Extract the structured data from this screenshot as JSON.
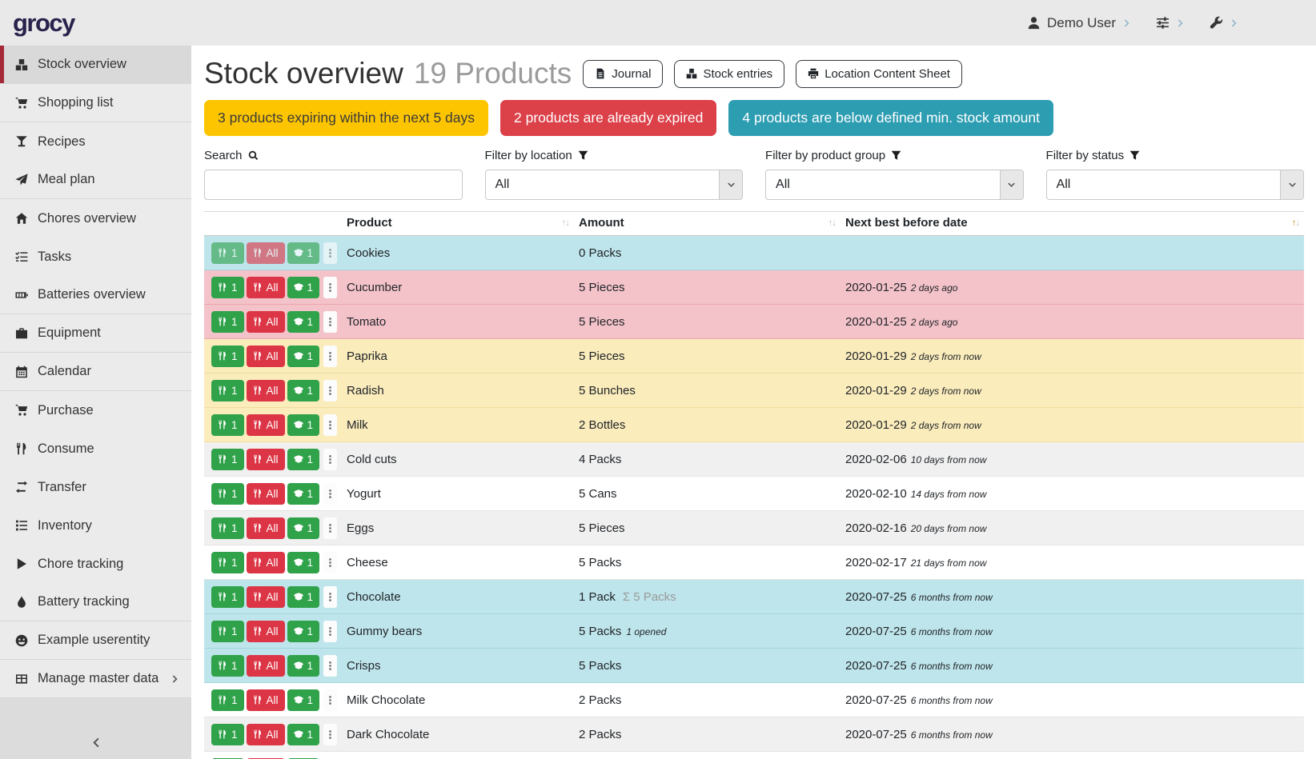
{
  "topbar": {
    "logo": "grocy",
    "user_label": "Demo User"
  },
  "sidebar": {
    "items": [
      {
        "label": "Stock overview",
        "icon": "boxes",
        "active": true,
        "divider_after": true
      },
      {
        "label": "Shopping list",
        "icon": "shopping-cart",
        "divider_after": true
      },
      {
        "label": "Recipes",
        "icon": "cocktail-glass"
      },
      {
        "label": "Meal plan",
        "icon": "paper-plane",
        "divider_after": true
      },
      {
        "label": "Chores overview",
        "icon": "home"
      },
      {
        "label": "Tasks",
        "icon": "tasks"
      },
      {
        "label": "Batteries overview",
        "icon": "battery",
        "divider_after": true
      },
      {
        "label": "Equipment",
        "icon": "toolbox",
        "divider_after": true
      },
      {
        "label": "Calendar",
        "icon": "calendar",
        "divider_after": true
      },
      {
        "label": "Purchase",
        "icon": "shopping-cart"
      },
      {
        "label": "Consume",
        "icon": "utensils"
      },
      {
        "label": "Transfer",
        "icon": "exchange-arrows"
      },
      {
        "label": "Inventory",
        "icon": "list"
      },
      {
        "label": "Chore tracking",
        "icon": "play"
      },
      {
        "label": "Battery tracking",
        "icon": "droplet",
        "divider_after": true
      },
      {
        "label": "Example userentity",
        "icon": "smiley",
        "divider_after": true
      },
      {
        "label": "Manage master data",
        "icon": "table",
        "chevron": true,
        "divider_after": true
      }
    ]
  },
  "header": {
    "title": "Stock overview",
    "subtitle": "19 Products",
    "buttons": [
      {
        "label": "Journal",
        "icon": "journal"
      },
      {
        "label": "Stock entries",
        "icon": "boxes"
      },
      {
        "label": "Location Content Sheet",
        "icon": "print"
      }
    ]
  },
  "alerts": [
    {
      "name": "expiring-soon-alert",
      "text": "3 products expiring within the next 5 days",
      "bg": "#fdc500",
      "fg": "#3b3b3b"
    },
    {
      "name": "expired-alert",
      "text": "2 products are already expired",
      "bg": "#dc4049",
      "fg": "#ffffff"
    },
    {
      "name": "below-min-stock-alert",
      "text": "4 products are below defined min. stock amount",
      "bg": "#2d9db2",
      "fg": "#ffffff"
    }
  ],
  "filters": {
    "search": {
      "label": "Search",
      "value": "",
      "icon": "search"
    },
    "location": {
      "label": "Filter by location",
      "value": "All",
      "icon": "filter"
    },
    "product_group": {
      "label": "Filter by product group",
      "value": "All",
      "icon": "filter"
    },
    "status": {
      "label": "Filter by status",
      "value": "All",
      "icon": "filter"
    }
  },
  "table": {
    "columns": [
      {
        "label": "Product",
        "sort": "none"
      },
      {
        "label": "Amount",
        "sort": "none"
      },
      {
        "label": "Next best before date",
        "sort": "asc"
      }
    ],
    "actions": {
      "consume_one": "1",
      "consume_all": "All",
      "open_one": "1"
    },
    "rows": [
      {
        "product": "Cookies",
        "amount": "0 Packs",
        "date": "",
        "date_note": "",
        "status": "below-min-stock",
        "actions_disabled": true
      },
      {
        "product": "Cucumber",
        "amount": "5 Pieces",
        "date": "2020-01-25",
        "date_note": "2 days ago",
        "status": "expired"
      },
      {
        "product": "Tomato",
        "amount": "5 Pieces",
        "date": "2020-01-25",
        "date_note": "2 days ago",
        "status": "expired"
      },
      {
        "product": "Paprika",
        "amount": "5 Pieces",
        "date": "2020-01-29",
        "date_note": "2 days from now",
        "status": "expiring-soon"
      },
      {
        "product": "Radish",
        "amount": "5 Bunches",
        "date": "2020-01-29",
        "date_note": "2 days from now",
        "status": "expiring-soon"
      },
      {
        "product": "Milk",
        "amount": "2 Bottles",
        "date": "2020-01-29",
        "date_note": "2 days from now",
        "status": "expiring-soon"
      },
      {
        "product": "Cold cuts",
        "amount": "4 Packs",
        "date": "2020-02-06",
        "date_note": "10 days from now",
        "status": ""
      },
      {
        "product": "Yogurt",
        "amount": "5 Cans",
        "date": "2020-02-10",
        "date_note": "14 days from now",
        "status": ""
      },
      {
        "product": "Eggs",
        "amount": "5 Pieces",
        "date": "2020-02-16",
        "date_note": "20 days from now",
        "status": ""
      },
      {
        "product": "Cheese",
        "amount": "5 Packs",
        "date": "2020-02-17",
        "date_note": "21 days from now",
        "status": ""
      },
      {
        "product": "Chocolate",
        "amount": "1 Pack",
        "amount_sum": "Σ 5 Packs",
        "date": "2020-07-25",
        "date_note": "6 months from now",
        "status": "below-min-stock"
      },
      {
        "product": "Gummy bears",
        "amount": "5 Packs",
        "amount_note": "1 opened",
        "date": "2020-07-25",
        "date_note": "6 months from now",
        "status": "below-min-stock"
      },
      {
        "product": "Crisps",
        "amount": "5 Packs",
        "date": "2020-07-25",
        "date_note": "6 months from now",
        "status": "below-min-stock"
      },
      {
        "product": "Milk Chocolate",
        "amount": "2 Packs",
        "date": "2020-07-25",
        "date_note": "6 months from now",
        "status": ""
      },
      {
        "product": "Dark Chocolate",
        "amount": "2 Packs",
        "date": "2020-07-25",
        "date_note": "6 months from now",
        "status": ""
      },
      {
        "product": "",
        "amount": "",
        "date": "",
        "date_note": "",
        "status": "",
        "partial": true
      }
    ]
  },
  "colors": {
    "topbar_bg": "#e9e9e9",
    "sidebar_bg": "#ebebeb",
    "sidebar_active_bg": "#d9d9d9",
    "sidebar_active_border": "#a6293a",
    "logo": "#29224c",
    "alert_warning": "#fdc500",
    "alert_danger": "#dc4049",
    "alert_info": "#2d9db2",
    "row_below_min_stock": "#bee5eb",
    "row_expired": "#f4c3ca",
    "row_expiring": "#fbecbc",
    "button_green": "#2fa24a",
    "button_red": "#dc3545",
    "sort_active": "#c9861c"
  }
}
